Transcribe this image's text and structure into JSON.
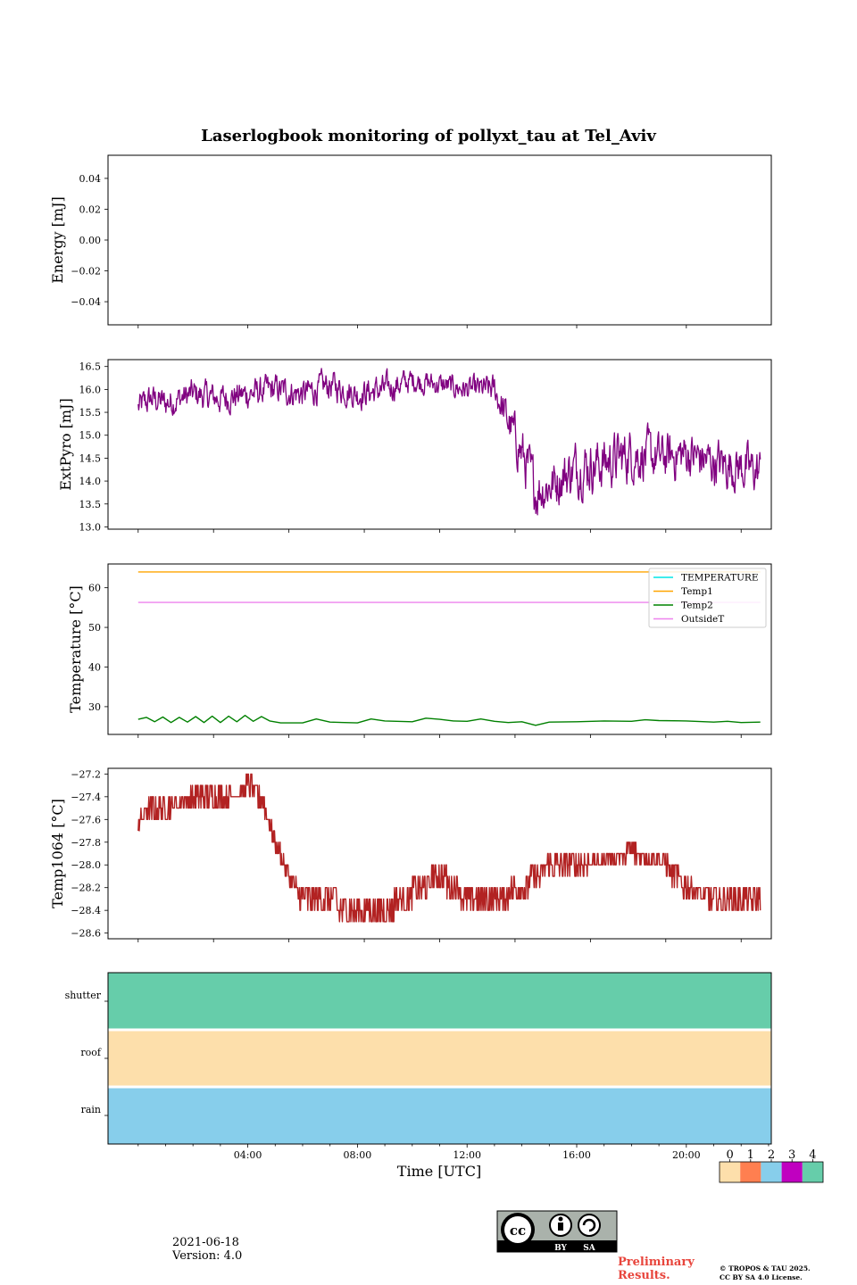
{
  "title": "Laserlogbook monitoring of pollyxt_tau at Tel_Aviv",
  "xlabel": "Time [UTC]",
  "footer": {
    "date": "2021-06-18",
    "version": "Version: 4.0",
    "preliminary_1": "Preliminary",
    "preliminary_2": "Results.",
    "copyright_1": "© TROPOS & TAU 2025.",
    "copyright_2": "CC BY SA 4.0 License.",
    "license_badge": {
      "cc": "cc",
      "by": "BY",
      "sa": "SA"
    }
  },
  "colorbar": {
    "ticks": [
      "0",
      "1",
      "2",
      "3",
      "4"
    ],
    "colors": [
      "#fddfab",
      "#ff7f50",
      "#87ceeb",
      "#c000c0",
      "#66cdaa"
    ]
  },
  "chart_data": [
    {
      "type": "line",
      "ylabel": "Energy [mJ]",
      "ylim": [
        -0.055,
        0.055
      ],
      "yticks": [
        0.04,
        0.02,
        0.0,
        -0.02,
        -0.04
      ],
      "ytick_labels": [
        "0.04",
        "0.02",
        "0.00",
        "−0.02",
        "−0.04"
      ],
      "series": []
    },
    {
      "type": "line",
      "ylabel": "ExtPyro [mJ]",
      "ylim": [
        12.95,
        16.65
      ],
      "yticks": [
        16.5,
        16.0,
        15.5,
        15.0,
        14.5,
        14.0,
        13.5,
        13.0
      ],
      "ytick_labels": [
        "16.5",
        "16.0",
        "15.5",
        "15.0",
        "14.5",
        "14.0",
        "13.5",
        "13.0"
      ],
      "series": [
        {
          "color": "#800080",
          "x_hours": [
            0.0,
            0.5,
            1.0,
            2.0,
            3.0,
            4.0,
            5.0,
            6.0,
            7.0,
            8.0,
            9.0,
            10.0,
            11.0,
            12.0,
            13.0,
            14.0,
            14.5,
            15.0,
            16.0,
            17.0,
            18.0,
            19.0,
            20.0,
            21.0,
            22.0,
            22.7
          ],
          "y": [
            15.6,
            15.8,
            15.7,
            15.9,
            15.8,
            15.9,
            16.0,
            15.9,
            16.1,
            15.9,
            16.0,
            16.2,
            16.1,
            16.0,
            16.0,
            14.6,
            13.8,
            13.9,
            14.3,
            14.4,
            14.6,
            14.5,
            14.6,
            14.4,
            14.3,
            14.2
          ],
          "noise": [
            0.25,
            0.25,
            0.25,
            0.25,
            0.25,
            0.25,
            0.25,
            0.25,
            0.25,
            0.25,
            0.25,
            0.2,
            0.2,
            0.2,
            0.25,
            0.45,
            0.45,
            0.4,
            0.45,
            0.45,
            0.45,
            0.4,
            0.4,
            0.4,
            0.4,
            0.4
          ]
        }
      ]
    },
    {
      "type": "line",
      "ylabel": "Temperature [°C]",
      "ylim": [
        23,
        66
      ],
      "yticks": [
        60,
        50,
        40,
        30
      ],
      "ytick_labels": [
        "60",
        "50",
        "40",
        "30"
      ],
      "legend": {
        "placement": "upper-right",
        "entries": [
          "TEMPERATURE",
          "Temp1",
          "Temp2",
          "OutsideT"
        ]
      },
      "series": [
        {
          "name": "TEMPERATURE",
          "color": "#00e5e5",
          "x_hours": [],
          "y": []
        },
        {
          "name": "Temp1",
          "color": "#ffa500",
          "x_hours": [
            0.0,
            22.7
          ],
          "y": [
            64.0,
            64.0
          ]
        },
        {
          "name": "Temp2",
          "color": "#008000",
          "x_hours": [
            0.0,
            0.3,
            0.6,
            0.9,
            1.2,
            1.5,
            1.8,
            2.1,
            2.4,
            2.7,
            3.0,
            3.3,
            3.6,
            3.9,
            4.2,
            4.5,
            4.8,
            5.2,
            6.0,
            6.5,
            7.0,
            8.0,
            8.5,
            9.0,
            10.0,
            10.5,
            11.0,
            11.5,
            12.0,
            12.5,
            13.0,
            13.5,
            14.0,
            14.5,
            15.0,
            16.0,
            17.0,
            18.0,
            18.5,
            19.0,
            20.0,
            21.0,
            21.5,
            22.0,
            22.7
          ],
          "y": [
            26.8,
            27.3,
            26.2,
            27.4,
            26.0,
            27.3,
            26.1,
            27.5,
            26.0,
            27.6,
            26.0,
            27.6,
            26.2,
            27.8,
            26.3,
            27.5,
            26.4,
            25.9,
            25.9,
            26.9,
            26.1,
            25.9,
            26.9,
            26.4,
            26.2,
            27.1,
            26.8,
            26.4,
            26.3,
            26.9,
            26.3,
            26.0,
            26.2,
            25.3,
            26.1,
            26.2,
            26.4,
            26.3,
            26.7,
            26.5,
            26.4,
            26.1,
            26.3,
            26.0,
            26.1
          ]
        },
        {
          "name": "OutsideT",
          "color": "#ee82ee",
          "x_hours": [
            0.0,
            22.7
          ],
          "y": [
            56.3,
            56.3
          ]
        }
      ]
    },
    {
      "type": "line",
      "ylabel": "Temp1064 [°C]",
      "ylim": [
        -28.65,
        -27.15
      ],
      "yticks": [
        -27.2,
        -27.4,
        -27.6,
        -27.8,
        -28.0,
        -28.2,
        -28.4,
        -28.6
      ],
      "ytick_labels": [
        "−27.2",
        "−27.4",
        "−27.6",
        "−27.8",
        "−28.0",
        "−28.2",
        "−28.4",
        "−28.6"
      ],
      "series": [
        {
          "color": "#b22222",
          "x_hours": [
            0.0,
            0.5,
            1.0,
            2.0,
            3.0,
            3.8,
            4.0,
            4.5,
            5.0,
            5.5,
            6.0,
            7.0,
            7.5,
            8.0,
            9.0,
            10.0,
            11.0,
            12.0,
            13.0,
            14.0,
            15.0,
            16.0,
            17.0,
            18.0,
            19.0,
            20.0,
            21.0,
            21.5,
            22.0,
            22.7
          ],
          "y": [
            -27.6,
            -27.5,
            -27.5,
            -27.4,
            -27.4,
            -27.35,
            -27.3,
            -27.4,
            -27.8,
            -28.1,
            -28.35,
            -28.3,
            -28.4,
            -28.45,
            -28.4,
            -28.25,
            -28.1,
            -28.3,
            -28.3,
            -28.2,
            -28.0,
            -28.0,
            -27.95,
            -27.9,
            -27.95,
            -28.2,
            -28.3,
            -28.35,
            -28.3,
            -28.3
          ],
          "noise": [
            0.08,
            0.07,
            0.07,
            0.07,
            0.07,
            0.07,
            0.08,
            0.08,
            0.07,
            0.07,
            0.1,
            0.1,
            0.1,
            0.1,
            0.1,
            0.1,
            0.1,
            0.1,
            0.1,
            0.1,
            0.08,
            0.08,
            0.06,
            0.06,
            0.08,
            0.08,
            0.08,
            0.1,
            0.1,
            0.1
          ]
        }
      ]
    },
    {
      "type": "heatmap",
      "yticks": [
        "shutter",
        "roof",
        "rain"
      ],
      "rows": [
        {
          "label": "shutter",
          "status": 4
        },
        {
          "label": "roof",
          "status": 0
        },
        {
          "label": "rain",
          "status": 2
        }
      ]
    }
  ],
  "x_axis": {
    "range_hours": [
      -1.1,
      23.1
    ],
    "major_ticks_hours": [
      4,
      8,
      12,
      16,
      20
    ],
    "major_tick_labels": [
      "04:00",
      "08:00",
      "12:00",
      "16:00",
      "20:00"
    ],
    "upper_panel_ticks_hours": [
      0,
      4,
      8,
      12,
      16,
      20
    ],
    "timeseries_ticks_hours": [
      0,
      2.75,
      5.5,
      8.25,
      11.0,
      13.75,
      16.5,
      19.25,
      22.0
    ]
  }
}
